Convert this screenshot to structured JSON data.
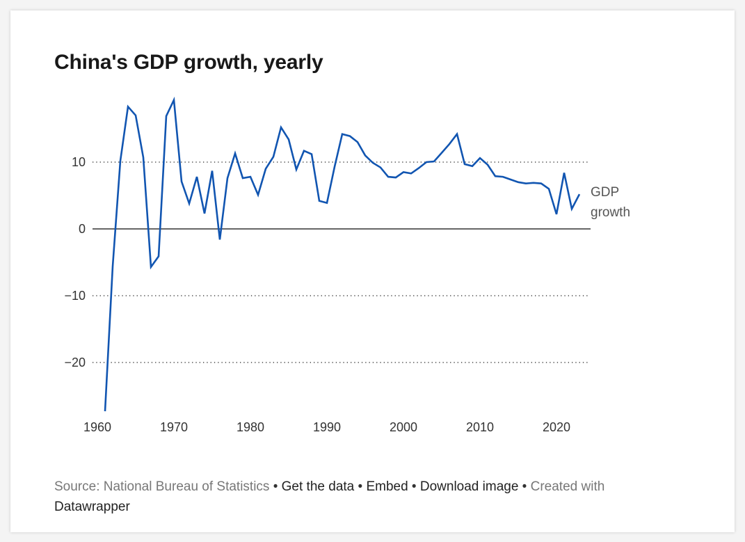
{
  "title": "China's GDP growth, yearly",
  "footer": {
    "source_label": "Source: National Bureau of Statistics",
    "separator": " • ",
    "get_data": "Get the data",
    "embed": "Embed",
    "download_image": "Download image",
    "created_with": "Created with",
    "datawrapper": "Datawrapper"
  },
  "colors": {
    "line": "#1155b1",
    "zero_line": "#333333",
    "grid": "#222222"
  },
  "chart_data": {
    "type": "line",
    "title": "China's GDP growth, yearly",
    "xlabel": "",
    "ylabel": "",
    "xlim": [
      1960,
      2024
    ],
    "ylim": [
      -27.3,
      19.3
    ],
    "x_ticks": [
      1960,
      1970,
      1980,
      1990,
      2000,
      2010,
      2020
    ],
    "x_tick_labels": [
      "1960",
      "1970",
      "1980",
      "1990",
      "2000",
      "2010",
      "2020"
    ],
    "y_ticks": [
      10,
      0,
      -10,
      -20
    ],
    "y_tick_labels": [
      "10",
      "0",
      "−10",
      "−20"
    ],
    "grid": "horizontal dotted",
    "legend": "direct label at line end (right)",
    "series": [
      {
        "name": "GDP growth",
        "label_lines": [
          "GDP",
          "growth"
        ],
        "x": [
          1961,
          1962,
          1963,
          1964,
          1965,
          1966,
          1967,
          1968,
          1969,
          1970,
          1971,
          1972,
          1973,
          1974,
          1975,
          1976,
          1977,
          1978,
          1979,
          1980,
          1981,
          1982,
          1983,
          1984,
          1985,
          1986,
          1987,
          1988,
          1989,
          1990,
          1991,
          1992,
          1993,
          1994,
          1995,
          1996,
          1997,
          1998,
          1999,
          2000,
          2001,
          2002,
          2003,
          2004,
          2005,
          2006,
          2007,
          2008,
          2009,
          2010,
          2011,
          2012,
          2013,
          2014,
          2015,
          2016,
          2017,
          2018,
          2019,
          2020,
          2021,
          2022,
          2023
        ],
        "values": [
          -27.3,
          -5.6,
          10.2,
          18.3,
          17.0,
          10.7,
          -5.7,
          -4.1,
          16.9,
          19.3,
          7.1,
          3.8,
          7.8,
          2.3,
          8.7,
          -1.6,
          7.6,
          11.3,
          7.6,
          7.8,
          5.1,
          9.0,
          10.8,
          15.2,
          13.4,
          8.9,
          11.7,
          11.2,
          4.2,
          3.9,
          9.3,
          14.2,
          13.9,
          13.0,
          11.0,
          9.9,
          9.2,
          7.8,
          7.7,
          8.5,
          8.3,
          9.1,
          10.0,
          10.1,
          11.4,
          12.7,
          14.2,
          9.7,
          9.4,
          10.6,
          9.6,
          7.9,
          7.8,
          7.4,
          7.0,
          6.8,
          6.9,
          6.8,
          6.0,
          2.2,
          8.4,
          3.0,
          5.2
        ]
      }
    ]
  }
}
